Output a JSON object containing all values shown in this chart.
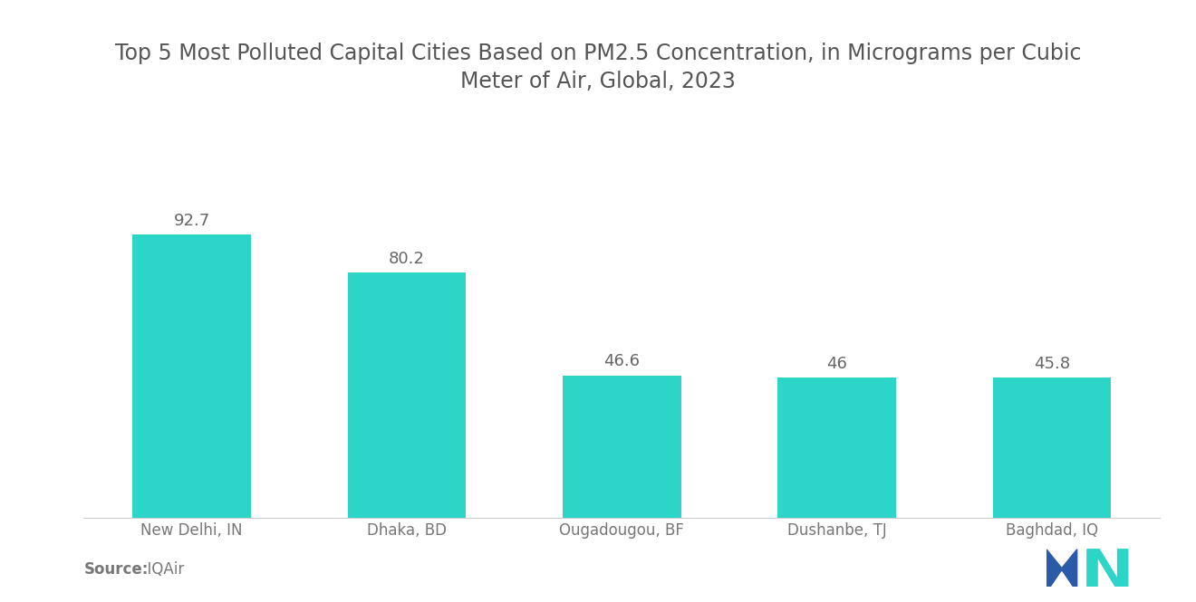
{
  "title": "Top 5 Most Polluted Capital Cities Based on PM2.5 Concentration, in Micrograms per Cubic\nMeter of Air, Global, 2023",
  "categories": [
    "New Delhi, IN",
    "Dhaka, BD",
    "Ougadougou, BF",
    "Dushanbe, TJ",
    "Baghdad, IQ"
  ],
  "values": [
    92.7,
    80.2,
    46.6,
    46,
    45.8
  ],
  "bar_color": "#2DD4C8",
  "value_labels": [
    "92.7",
    "80.2",
    "46.6",
    "46",
    "45.8"
  ],
  "ylim": [
    0,
    130
  ],
  "source_label": "Source:",
  "source_value": "  IQAir",
  "title_fontsize": 17,
  "label_fontsize": 12,
  "value_fontsize": 13,
  "source_fontsize": 12,
  "background_color": "#ffffff",
  "bar_width": 0.55,
  "title_color": "#555555",
  "label_color": "#777777",
  "value_color": "#666666"
}
